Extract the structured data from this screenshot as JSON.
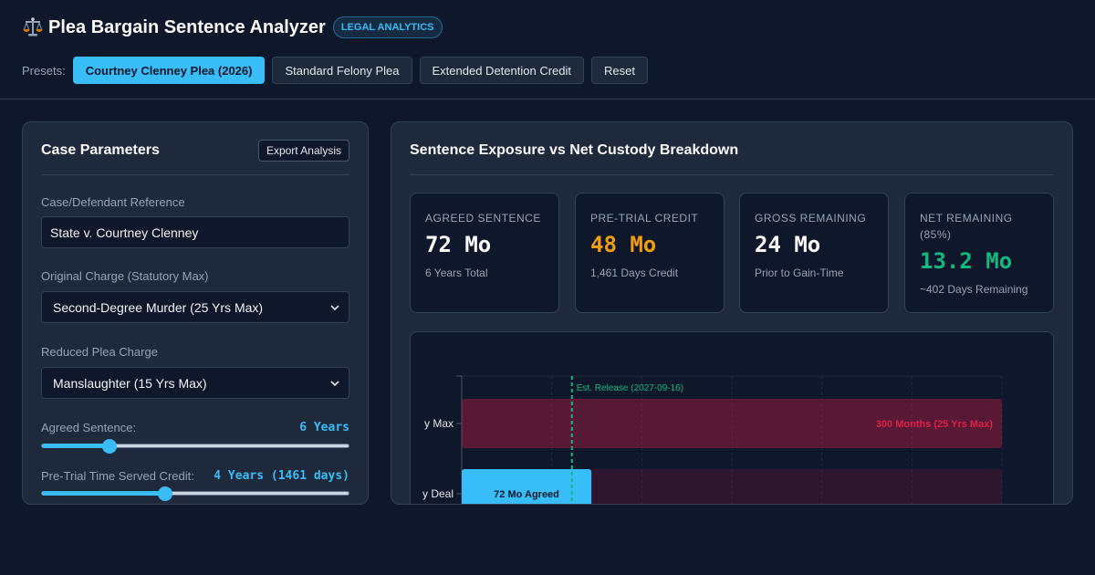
{
  "app": {
    "title": "Plea Bargain Sentence Analyzer",
    "badge": "LEGAL ANALYTICS",
    "presets_label": "Presets:",
    "presets": [
      {
        "label": "Courtney Clenney Plea (2026)",
        "active": true
      },
      {
        "label": "Standard Felony Plea",
        "active": false
      },
      {
        "label": "Extended Detention Credit",
        "active": false
      },
      {
        "label": "Reset",
        "active": false
      }
    ]
  },
  "colors": {
    "accent": "#38bdf8",
    "credit": "#f59e0b",
    "net": "#10b981",
    "danger": "#e11d48"
  },
  "params": {
    "title": "Case Parameters",
    "export_label": "Export Analysis",
    "reference_label": "Case/Defendant Reference",
    "reference_value": "State v. Courtney Clenney",
    "original_label": "Original Charge (Statutory Max)",
    "original_value": "Second-Degree Murder (25 Yrs Max)",
    "reduced_label": "Reduced Plea Charge",
    "reduced_value": "Manslaughter (15 Yrs Max)",
    "sentence_label": "Agreed Sentence:",
    "sentence_value": "6 Years",
    "sentence_fraction": 0.22,
    "credit_label": "Pre-Trial Time Served Credit:",
    "credit_value": "4 Years (1461 days)",
    "credit_fraction": 0.4
  },
  "breakdown": {
    "title": "Sentence Exposure vs Net Custody Breakdown",
    "cards": [
      {
        "label": "AGREED SENTENCE",
        "value": "72 Mo",
        "sub": "6 Years Total",
        "color": "#f8fafc"
      },
      {
        "label": "PRE-TRIAL CREDIT",
        "value": "48 Mo",
        "sub": "1,461 Days Credit",
        "color": "#f59e0b"
      },
      {
        "label": "GROSS REMAINING",
        "value": "24 Mo",
        "sub": "Prior to Gain-Time",
        "color": "#f8fafc"
      },
      {
        "label": "NET REMAINING (85%)",
        "value": "13.2 Mo",
        "sub": "~402 Days Remaining",
        "color": "#10b981"
      }
    ]
  },
  "chart_data": {
    "type": "bar",
    "orientation": "horizontal",
    "categories": [
      "Statutory Max",
      "Plea Deal"
    ],
    "category_labels_visible": [
      "y Max",
      "y Deal"
    ],
    "xlim": [
      0,
      300
    ],
    "bars": [
      {
        "category": "Statutory Max",
        "value": 300,
        "label": "300 Months (25 Yrs Max)"
      },
      {
        "category": "Plea Deal",
        "value": 72,
        "label": "72 Mo Agreed"
      }
    ],
    "release_marker": {
      "value": 61.2,
      "label": "Est. Release (2027-09-16)"
    },
    "grid": true
  }
}
